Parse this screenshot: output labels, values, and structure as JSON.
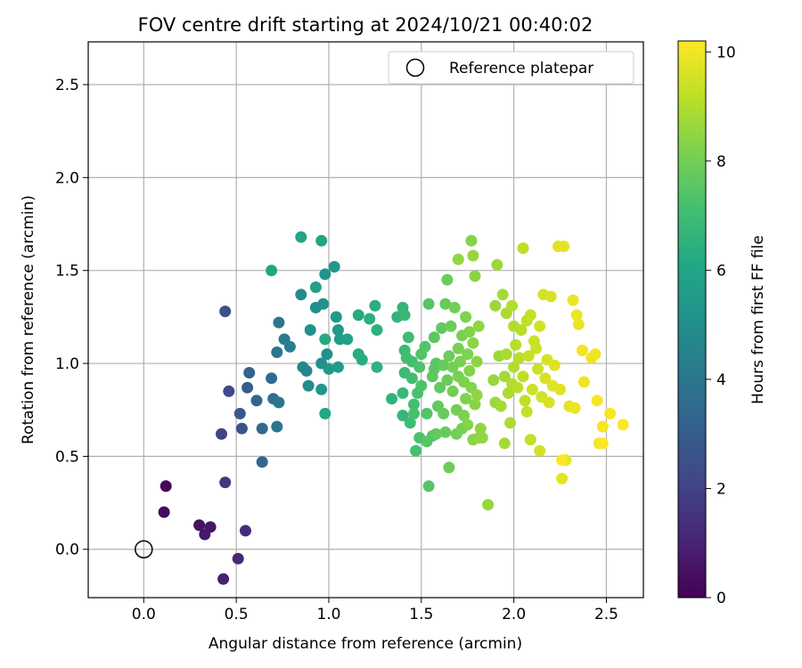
{
  "chart_data": {
    "type": "scatter",
    "title": "FOV centre drift starting at 2024/10/21 00:40:02",
    "xlabel": "Angular distance from reference (arcmin)",
    "ylabel": "Rotation from reference (arcmin)",
    "xlim": [
      -0.3,
      2.7
    ],
    "ylim": [
      -0.26,
      2.73
    ],
    "xticks": [
      0.0,
      0.5,
      1.0,
      1.5,
      2.0,
      2.5
    ],
    "xtick_labels": [
      "0.0",
      "0.5",
      "1.0",
      "1.5",
      "2.0",
      "2.5"
    ],
    "yticks": [
      0.0,
      0.5,
      1.0,
      1.5,
      2.0,
      2.5
    ],
    "ytick_labels": [
      "0.0",
      "0.5",
      "1.0",
      "1.5",
      "2.0",
      "2.5"
    ],
    "grid": true,
    "legend": {
      "placement": "top-right",
      "entries": [
        "Reference platepar"
      ]
    },
    "reference_point": {
      "x": 0.0,
      "y": 0.0
    },
    "colorbar": {
      "label": "Hours from first FF file",
      "range": [
        0,
        10.2
      ],
      "ticks": [
        0,
        2,
        4,
        6,
        8,
        10
      ],
      "tick_labels": [
        "0",
        "2",
        "4",
        "6",
        "8",
        "10"
      ],
      "colormap": "viridis"
    },
    "points": [
      [
        0.12,
        0.34,
        0.2
      ],
      [
        0.11,
        0.2,
        0.3
      ],
      [
        0.3,
        0.13,
        0.5
      ],
      [
        0.36,
        0.12,
        0.6
      ],
      [
        0.33,
        0.08,
        0.7
      ],
      [
        0.43,
        -0.16,
        0.9
      ],
      [
        0.51,
        -0.05,
        1.1
      ],
      [
        0.55,
        0.1,
        1.3
      ],
      [
        0.44,
        0.36,
        1.6
      ],
      [
        0.42,
        0.62,
        2.0
      ],
      [
        0.46,
        0.85,
        2.2
      ],
      [
        0.44,
        1.28,
        2.5
      ],
      [
        0.53,
        0.65,
        2.6
      ],
      [
        0.52,
        0.73,
        2.8
      ],
      [
        0.56,
        0.87,
        3.0
      ],
      [
        0.57,
        0.95,
        3.2
      ],
      [
        0.61,
        0.8,
        3.3
      ],
      [
        0.64,
        0.47,
        3.4
      ],
      [
        0.64,
        0.65,
        3.5
      ],
      [
        0.69,
        0.92,
        3.6
      ],
      [
        0.7,
        0.81,
        3.7
      ],
      [
        0.72,
        0.66,
        3.9
      ],
      [
        0.73,
        0.79,
        4.0
      ],
      [
        0.72,
        1.06,
        4.0
      ],
      [
        0.73,
        1.22,
        4.1
      ],
      [
        0.76,
        1.13,
        4.2
      ],
      [
        0.79,
        1.09,
        4.4
      ],
      [
        0.88,
        0.96,
        4.6
      ],
      [
        0.86,
        0.98,
        4.7
      ],
      [
        0.85,
        1.37,
        4.8
      ],
      [
        0.89,
        0.88,
        4.9
      ],
      [
        0.9,
        1.18,
        5.0
      ],
      [
        0.93,
        1.3,
        5.0
      ],
      [
        0.96,
        1.0,
        5.1
      ],
      [
        0.97,
        1.32,
        5.1
      ],
      [
        0.98,
        1.48,
        5.2
      ],
      [
        0.99,
        1.05,
        5.2
      ],
      [
        0.96,
        0.86,
        5.3
      ],
      [
        1.0,
        0.97,
        5.4
      ],
      [
        1.03,
        1.52,
        5.4
      ],
      [
        1.04,
        1.25,
        5.5
      ],
      [
        1.05,
        1.18,
        5.5
      ],
      [
        1.06,
        1.13,
        5.6
      ],
      [
        1.05,
        0.98,
        5.6
      ],
      [
        0.93,
        1.41,
        5.7
      ],
      [
        1.1,
        1.13,
        5.8
      ],
      [
        0.69,
        1.5,
        5.9
      ],
      [
        0.85,
        1.68,
        6.0
      ],
      [
        0.96,
        1.66,
        6.0
      ],
      [
        0.98,
        0.73,
        6.1
      ],
      [
        0.98,
        1.13,
        6.2
      ],
      [
        1.16,
        1.26,
        6.2
      ],
      [
        1.16,
        1.05,
        6.3
      ],
      [
        1.18,
        1.02,
        6.3
      ],
      [
        1.22,
        1.24,
        6.4
      ],
      [
        1.25,
        1.31,
        6.4
      ],
      [
        1.26,
        1.18,
        6.5
      ],
      [
        1.26,
        0.98,
        6.5
      ],
      [
        1.34,
        0.81,
        6.6
      ],
      [
        1.37,
        1.25,
        6.6
      ],
      [
        1.4,
        1.3,
        6.7
      ],
      [
        1.4,
        0.72,
        6.7
      ],
      [
        1.4,
        0.84,
        6.8
      ],
      [
        1.41,
        1.26,
        6.8
      ],
      [
        1.41,
        1.07,
        6.9
      ],
      [
        1.41,
        0.95,
        6.9
      ],
      [
        1.42,
        1.03,
        7.0
      ],
      [
        1.43,
        1.14,
        7.0
      ],
      [
        1.44,
        0.68,
        7.0
      ],
      [
        1.45,
        0.92,
        7.1
      ],
      [
        1.45,
        1.01,
        7.1
      ],
      [
        1.46,
        0.78,
        7.1
      ],
      [
        1.46,
        0.73,
        7.2
      ],
      [
        1.47,
        0.53,
        7.2
      ],
      [
        1.48,
        0.84,
        7.2
      ],
      [
        1.49,
        0.6,
        7.3
      ],
      [
        1.49,
        0.98,
        7.3
      ],
      [
        1.5,
        0.88,
        7.3
      ],
      [
        1.5,
        1.05,
        7.4
      ],
      [
        1.52,
        1.09,
        7.4
      ],
      [
        1.53,
        0.73,
        7.4
      ],
      [
        1.53,
        0.58,
        7.5
      ],
      [
        1.54,
        1.32,
        7.5
      ],
      [
        1.54,
        0.34,
        7.5
      ],
      [
        1.56,
        0.61,
        7.5
      ],
      [
        1.56,
        0.93,
        7.6
      ],
      [
        1.57,
        0.97,
        7.6
      ],
      [
        1.57,
        1.14,
        7.6
      ],
      [
        1.58,
        1.0,
        7.6
      ],
      [
        1.58,
        0.62,
        7.7
      ],
      [
        1.59,
        0.77,
        7.7
      ],
      [
        1.6,
        0.87,
        7.7
      ],
      [
        1.61,
        1.19,
        7.7
      ],
      [
        1.62,
        0.99,
        7.8
      ],
      [
        1.62,
        0.73,
        7.8
      ],
      [
        1.63,
        1.32,
        7.8
      ],
      [
        1.63,
        0.63,
        7.8
      ],
      [
        1.64,
        0.91,
        7.9
      ],
      [
        1.64,
        1.45,
        7.9
      ],
      [
        1.65,
        0.44,
        7.9
      ],
      [
        1.65,
        1.04,
        7.9
      ],
      [
        1.66,
        1.2,
        7.9
      ],
      [
        1.67,
        0.98,
        8.0
      ],
      [
        1.67,
        0.85,
        8.0
      ],
      [
        1.68,
        1.3,
        8.0
      ],
      [
        1.69,
        0.75,
        8.0
      ],
      [
        1.69,
        0.62,
        8.0
      ],
      [
        1.7,
        1.08,
        8.1
      ],
      [
        1.7,
        0.93,
        8.1
      ],
      [
        1.71,
        1.01,
        8.1
      ],
      [
        1.72,
        0.65,
        8.1
      ],
      [
        1.72,
        1.15,
        8.1
      ],
      [
        1.73,
        0.9,
        8.2
      ],
      [
        1.73,
        0.72,
        8.2
      ],
      [
        1.74,
        1.25,
        8.2
      ],
      [
        1.74,
        0.81,
        8.2
      ],
      [
        1.75,
        1.05,
        8.2
      ],
      [
        1.75,
        0.67,
        8.3
      ],
      [
        1.76,
        1.17,
        8.3
      ],
      [
        1.76,
        0.96,
        8.3
      ],
      [
        1.77,
        1.66,
        8.3
      ],
      [
        1.77,
        0.87,
        8.3
      ],
      [
        1.78,
        0.59,
        8.4
      ],
      [
        1.78,
        1.11,
        8.4
      ],
      [
        1.79,
        1.47,
        8.4
      ],
      [
        1.79,
        0.78,
        8.4
      ],
      [
        1.8,
        1.01,
        8.4
      ],
      [
        1.8,
        0.83,
        8.5
      ],
      [
        1.81,
        1.2,
        8.5
      ],
      [
        1.81,
        0.6,
        8.5
      ],
      [
        1.82,
        0.65,
        8.5
      ],
      [
        1.83,
        0.6,
        8.5
      ],
      [
        1.7,
        1.56,
        8.5
      ],
      [
        1.78,
        1.58,
        8.6
      ],
      [
        1.86,
        0.24,
        8.6
      ],
      [
        1.89,
        0.91,
        8.6
      ],
      [
        1.9,
        1.31,
        8.7
      ],
      [
        1.9,
        0.79,
        8.7
      ],
      [
        1.91,
        1.53,
        8.7
      ],
      [
        1.92,
        1.04,
        8.7
      ],
      [
        1.93,
        0.77,
        8.8
      ],
      [
        1.94,
        1.37,
        8.8
      ],
      [
        1.95,
        0.93,
        8.8
      ],
      [
        1.95,
        0.57,
        8.8
      ],
      [
        1.96,
        1.27,
        8.9
      ],
      [
        1.96,
        1.05,
        8.9
      ],
      [
        1.97,
        0.84,
        8.9
      ],
      [
        1.98,
        0.68,
        8.9
      ],
      [
        1.99,
        1.31,
        9.0
      ],
      [
        1.99,
        0.89,
        9.0
      ],
      [
        2.0,
        1.2,
        9.0
      ],
      [
        2.0,
        0.98,
        9.0
      ],
      [
        2.01,
        1.1,
        9.1
      ],
      [
        2.02,
        0.87,
        9.1
      ],
      [
        2.03,
        1.03,
        9.1
      ],
      [
        2.04,
        1.18,
        9.1
      ],
      [
        2.05,
        0.93,
        9.2
      ],
      [
        2.05,
        1.62,
        9.2
      ],
      [
        2.06,
        0.8,
        9.2
      ],
      [
        2.07,
        1.23,
        9.2
      ],
      [
        2.07,
        0.74,
        9.3
      ],
      [
        2.08,
        1.04,
        9.3
      ],
      [
        2.09,
        0.59,
        9.3
      ],
      [
        2.09,
        1.26,
        9.3
      ],
      [
        2.1,
        0.86,
        9.4
      ],
      [
        2.11,
        1.12,
        9.4
      ],
      [
        2.12,
        1.08,
        9.4
      ],
      [
        2.13,
        0.97,
        9.4
      ],
      [
        2.14,
        1.2,
        9.5
      ],
      [
        2.14,
        0.53,
        9.5
      ],
      [
        2.15,
        0.82,
        9.5
      ],
      [
        2.16,
        1.37,
        9.5
      ],
      [
        2.17,
        0.92,
        9.6
      ],
      [
        2.18,
        1.02,
        9.6
      ],
      [
        2.19,
        0.79,
        9.6
      ],
      [
        2.2,
        1.36,
        9.6
      ],
      [
        2.21,
        0.88,
        9.7
      ],
      [
        2.22,
        0.99,
        9.7
      ],
      [
        2.24,
        1.63,
        9.7
      ],
      [
        2.25,
        0.86,
        9.7
      ],
      [
        2.26,
        0.38,
        9.8
      ],
      [
        2.27,
        1.63,
        9.8
      ],
      [
        2.28,
        0.48,
        9.8
      ],
      [
        2.3,
        0.77,
        9.8
      ],
      [
        2.32,
        1.34,
        9.9
      ],
      [
        2.33,
        0.76,
        9.9
      ],
      [
        2.34,
        1.26,
        9.9
      ],
      [
        2.35,
        1.21,
        9.9
      ],
      [
        2.37,
        1.07,
        10.0
      ],
      [
        2.38,
        0.9,
        10.0
      ],
      [
        2.42,
        1.03,
        10.0
      ],
      [
        2.44,
        1.05,
        10.0
      ],
      [
        2.45,
        0.8,
        10.1
      ],
      [
        2.46,
        0.57,
        10.1
      ],
      [
        2.48,
        0.66,
        10.1
      ],
      [
        2.52,
        0.73,
        10.1
      ],
      [
        2.59,
        0.67,
        10.2
      ],
      [
        2.48,
        0.57,
        10.2
      ],
      [
        2.26,
        0.48,
        10.2
      ]
    ]
  }
}
